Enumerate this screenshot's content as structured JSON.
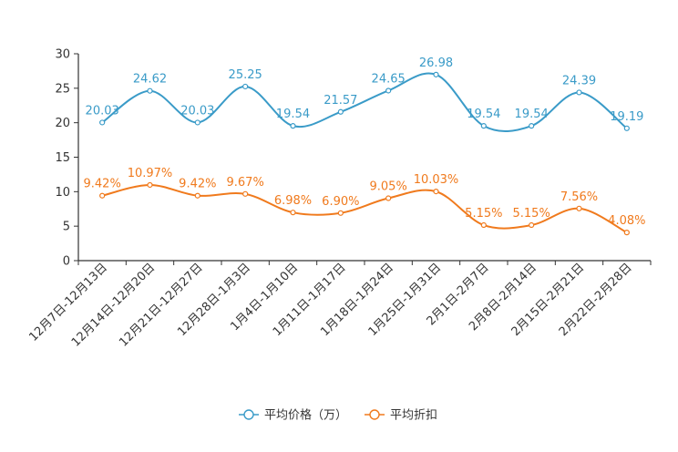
{
  "chart_data": {
    "type": "line",
    "title": "",
    "xlabel": "",
    "ylabel": "",
    "ylim": [
      0,
      30
    ],
    "yticks": [
      0,
      5,
      10,
      15,
      20,
      25,
      30
    ],
    "categories": [
      "12月7日-12月13日",
      "12月14日-12月20日",
      "12月21日-12月27日",
      "12月28日-1月3日",
      "1月4日-1月10日",
      "1月11日-1月17日",
      "1月18日-1月24日",
      "1月25日-1月31日",
      "2月1日-2月7日",
      "2月8日-2月14日",
      "2月15日-2月21日",
      "2月22日-2月28日"
    ],
    "series": [
      {
        "name": "平均价格（万）",
        "color": "#3a9bc8",
        "values": [
          20.03,
          24.62,
          20.03,
          25.25,
          19.54,
          21.57,
          24.65,
          26.98,
          19.54,
          19.54,
          24.39,
          19.19
        ],
        "labels": [
          "20.03",
          "24.62",
          "20.03",
          "25.25",
          "19.54",
          "21.57",
          "24.65",
          "26.98",
          "19.54",
          "19.54",
          "24.39",
          "19.19"
        ]
      },
      {
        "name": "平均折扣",
        "color": "#f07a1d",
        "values": [
          9.42,
          10.97,
          9.42,
          9.67,
          6.98,
          6.9,
          9.05,
          10.03,
          5.15,
          5.15,
          7.56,
          4.08
        ],
        "labels": [
          "9.42%",
          "10.97%",
          "9.42%",
          "9.67%",
          "6.98%",
          "6.90%",
          "9.05%",
          "10.03%",
          "5.15%",
          "5.15%",
          "7.56%",
          "4.08%"
        ]
      }
    ],
    "legend_position": "bottom-center",
    "grid": false
  }
}
